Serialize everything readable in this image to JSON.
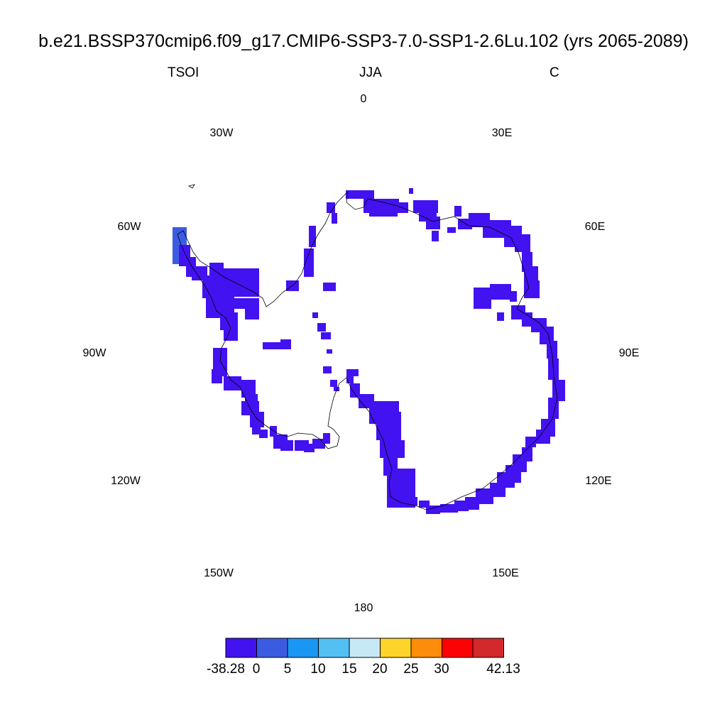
{
  "title": "b.e21.BSSP370cmip6.f09_g17.CMIP6-SSP3-7.0-SSP1-2.6Lu.102 (yrs 2065-2089)",
  "subtitle": {
    "left": "TSOI",
    "center": "JJA",
    "right": "C"
  },
  "longitude_labels": [
    "0",
    "30E",
    "60E",
    "90E",
    "120E",
    "150E",
    "180",
    "150W",
    "120W",
    "90W",
    "60W",
    "30W"
  ],
  "colorbar": {
    "colors": [
      "#4212f0",
      "#3b5ce2",
      "#1a96f5",
      "#52c0f3",
      "#c7e8f7",
      "#fdd42a",
      "#fd8c0a",
      "#fb0205",
      "#d3282c"
    ],
    "labels": [
      "-38.28",
      "0",
      "5",
      "10",
      "15",
      "20",
      "25",
      "30",
      "42.13"
    ]
  },
  "map_colors": {
    "field": "#4212f0",
    "peninsula": "#3b5ce2",
    "coast": "#000000"
  }
}
